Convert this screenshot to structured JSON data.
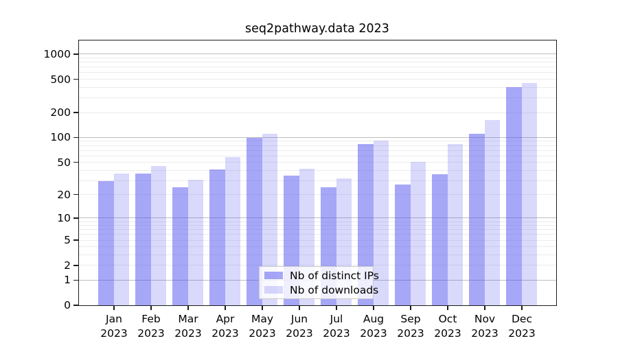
{
  "title": "seq2pathway.data 2023",
  "year": "2023",
  "legend": {
    "items": [
      {
        "label": "Nb of distinct IPs",
        "color": "rgba(80,80,240,0.50)",
        "hex_over_white": "#a8a8f7"
      },
      {
        "label": "Nb of downloads",
        "color": "rgba(80,80,240,0.22)",
        "hex_over_white": "#d9d9fa"
      }
    ]
  },
  "chart_data": {
    "type": "bar",
    "title": "seq2pathway.data 2023",
    "categories": [
      "Jan 2023",
      "Feb 2023",
      "Mar 2023",
      "Apr 2023",
      "May 2023",
      "Jun 2023",
      "Jul 2023",
      "Aug 2023",
      "Sep 2023",
      "Oct 2023",
      "Nov 2023",
      "Dec 2023"
    ],
    "months": [
      "Jan",
      "Feb",
      "Mar",
      "Apr",
      "May",
      "Jun",
      "Jul",
      "Aug",
      "Sep",
      "Oct",
      "Nov",
      "Dec"
    ],
    "series": [
      {
        "name": "Nb of distinct IPs",
        "values": [
          30,
          37,
          25,
          41,
          100,
          35,
          25,
          84,
          27,
          36,
          112,
          410
        ]
      },
      {
        "name": "Nb of downloads",
        "values": [
          37,
          46,
          31,
          58,
          112,
          42,
          32,
          93,
          51,
          84,
          165,
          460
        ]
      }
    ],
    "xlabel": "",
    "ylabel": "",
    "y_ticks": [
      0,
      1,
      2,
      5,
      10,
      20,
      50,
      100,
      200,
      500,
      1000
    ],
    "ylim": [
      0,
      1000
    ],
    "y_scale": "log10(1+x), zero shown at baseline",
    "grid": true,
    "gridline_major_values": [
      1,
      10,
      100,
      1000
    ],
    "legend_position": "inside-bottom-center",
    "colors": {
      "bar_base": "#5050f0",
      "gridline_minor": "#ececec",
      "gridline_major": "#bdbdbd",
      "frame": "#1c1c1c"
    }
  }
}
